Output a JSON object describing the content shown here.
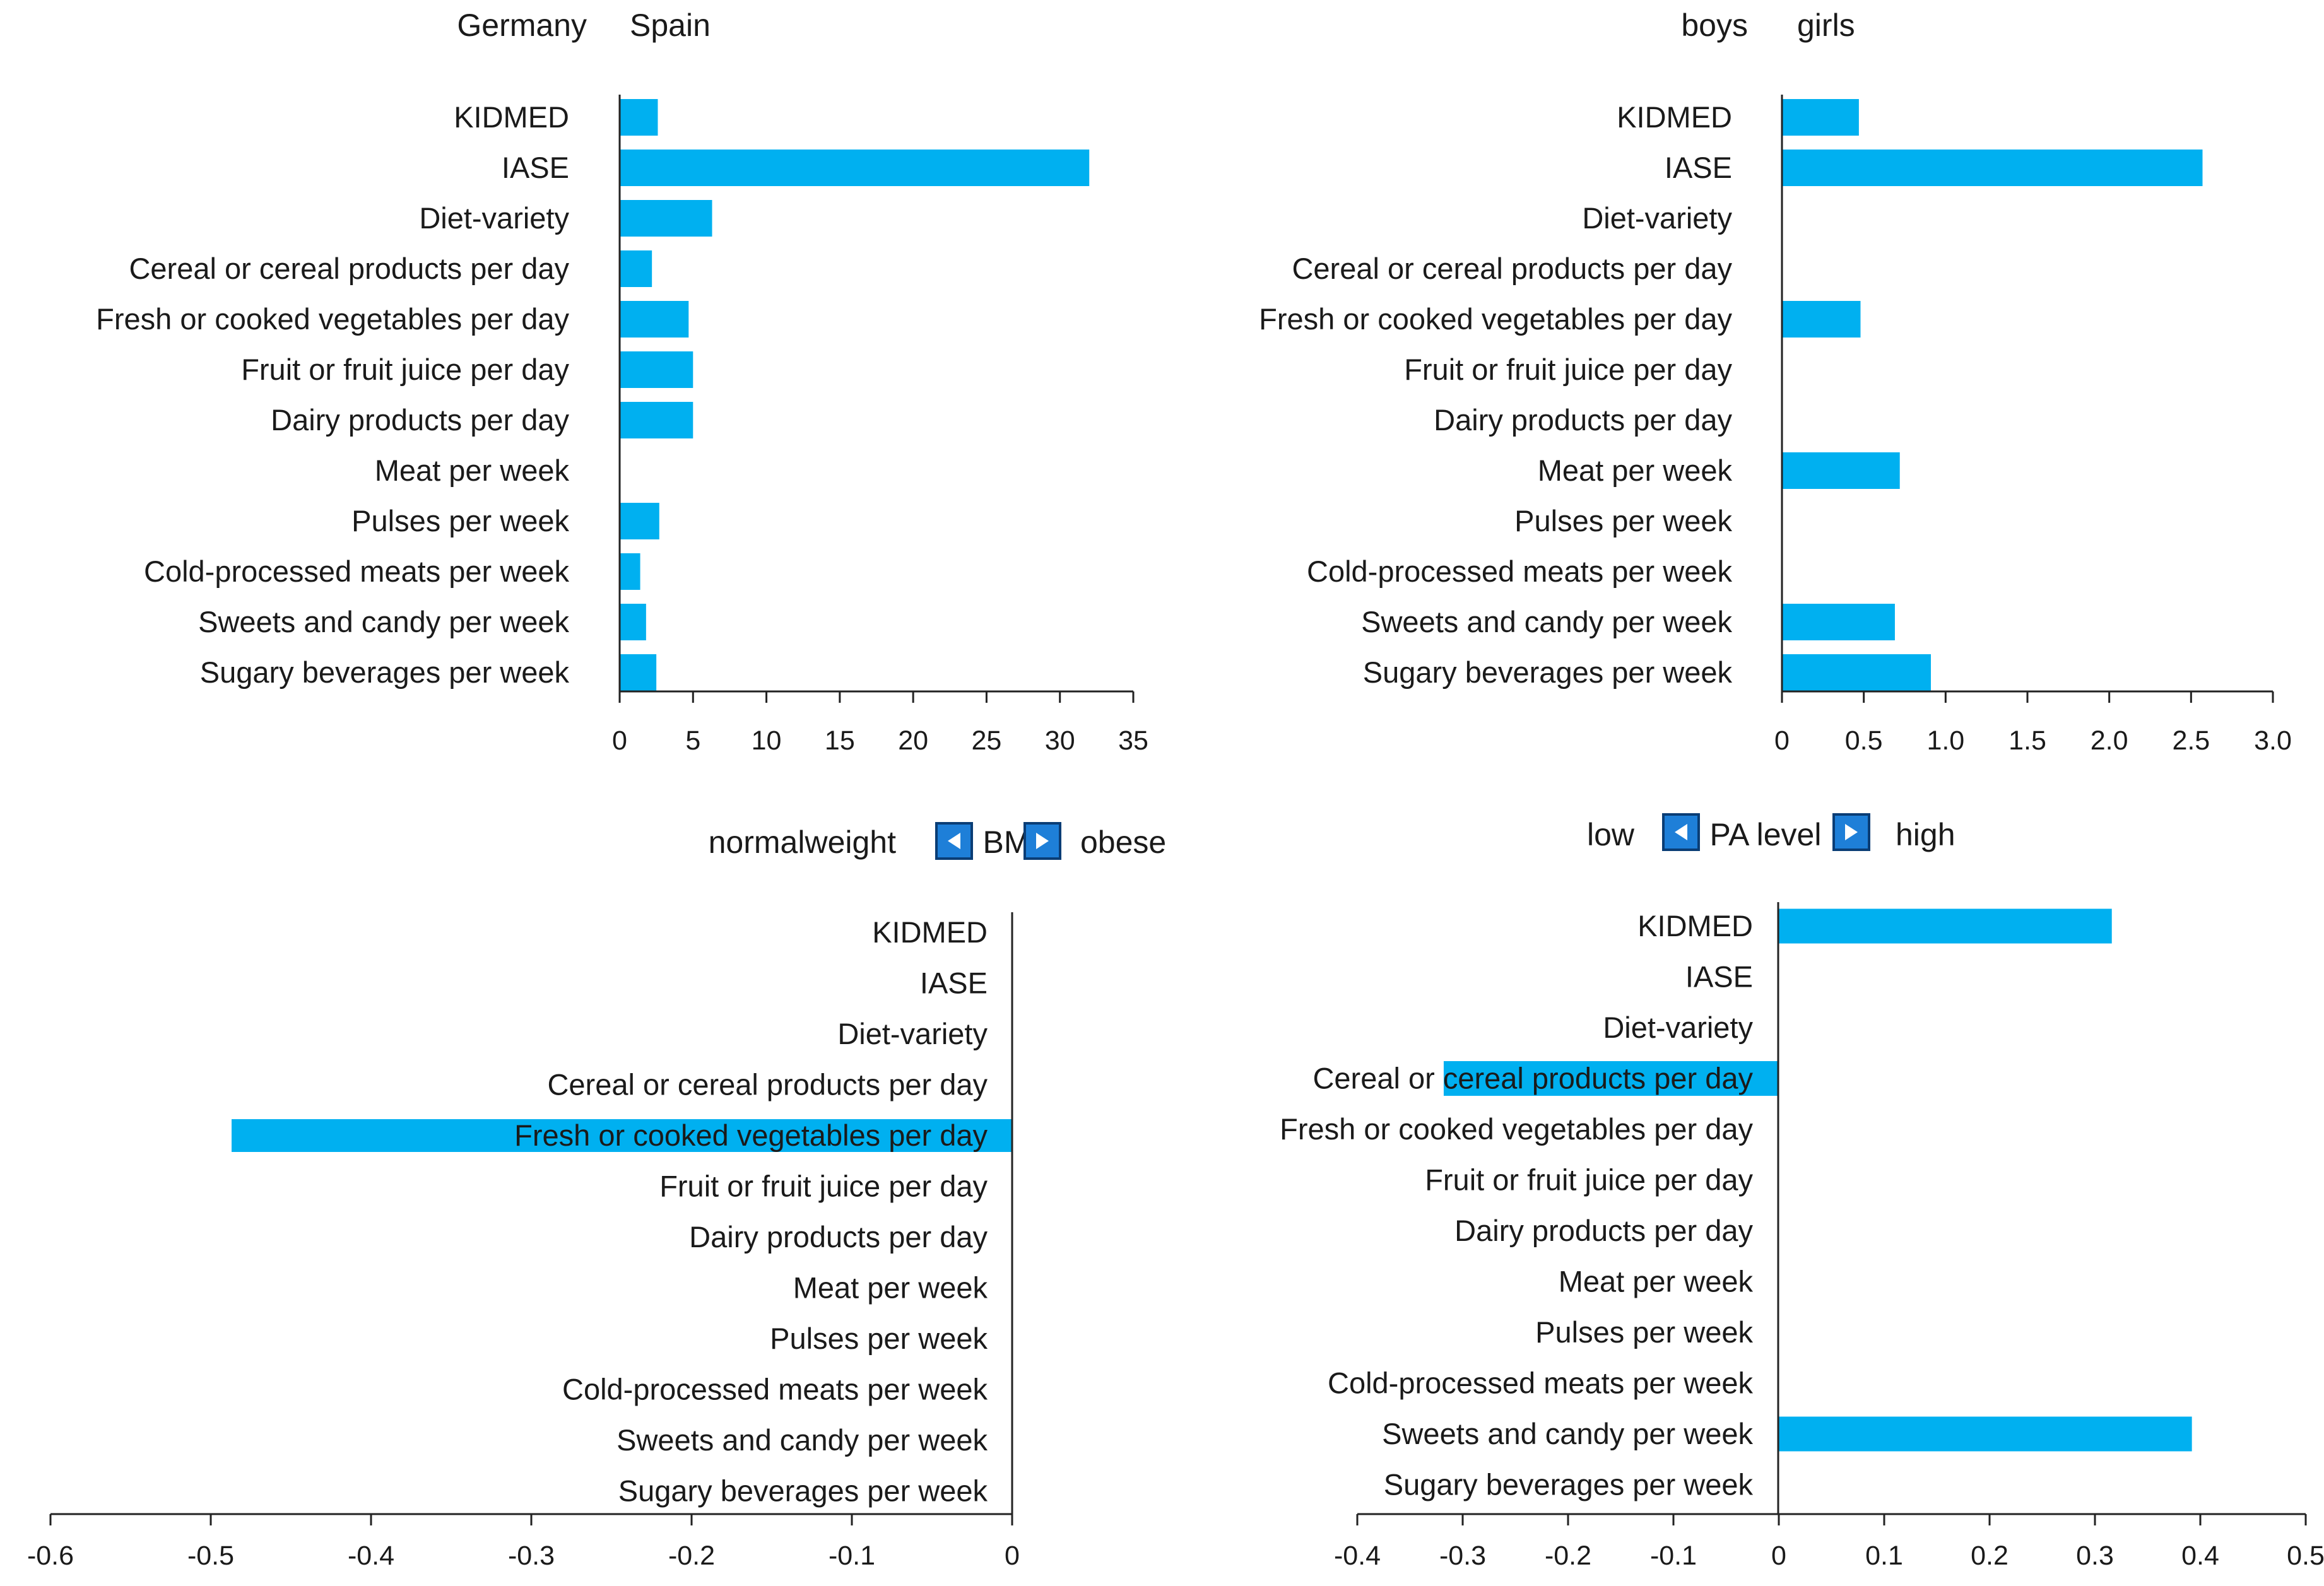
{
  "colors": {
    "bar": "#00b0f0",
    "axis": "#222222",
    "arrow": "#1e7fd8"
  },
  "chart_data": [
    {
      "type": "bar",
      "orientation": "horizontal",
      "header": {
        "left": "Germany",
        "right": "Spain"
      },
      "categories": [
        "KIDMED",
        "IASE",
        "Diet-variety",
        "Cereal or cereal products per day",
        "Fresh or cooked vegetables per day",
        "Fruit or fruit juice per day",
        "Dairy products per day",
        "Meat per week",
        "Pulses per week",
        "Cold-processed meats per week",
        "Sweets and candy per week",
        "Sugary beverages per week"
      ],
      "values": [
        2.6,
        32.0,
        6.3,
        2.2,
        4.7,
        5.0,
        5.0,
        0,
        2.7,
        1.4,
        1.8,
        2.5
      ],
      "xlim": [
        0,
        35
      ],
      "xticks": [
        "0",
        "5",
        "10",
        "15",
        "20",
        "25",
        "30",
        "35"
      ],
      "xtick_values": [
        0,
        5,
        10,
        15,
        20,
        25,
        30,
        35
      ]
    },
    {
      "type": "bar",
      "orientation": "horizontal",
      "header": {
        "left": "boys",
        "right": "girls"
      },
      "categories": [
        "KIDMED",
        "IASE",
        "Diet-variety",
        "Cereal or cereal products per day",
        "Fresh or cooked vegetables per day",
        "Fruit or fruit juice per day",
        "Dairy products per day",
        "Meat per week",
        "Pulses per week",
        "Cold-processed meats per week",
        "Sweets and candy per week",
        "Sugary beverages per week"
      ],
      "values": [
        0.47,
        2.57,
        0,
        0,
        0.48,
        0,
        0,
        0.72,
        0,
        0,
        0.69,
        0.91
      ],
      "xlim": [
        0,
        3.0
      ],
      "xticks": [
        "0",
        "0.5",
        "1.0",
        "1.5",
        "2.0",
        "2.5",
        "3.0"
      ],
      "xtick_values": [
        0,
        0.5,
        1.0,
        1.5,
        2.0,
        2.5,
        3.0
      ]
    },
    {
      "type": "bar",
      "orientation": "horizontal",
      "header": {
        "left": "normalweight",
        "middle": "BMI",
        "right": "obese"
      },
      "categories": [
        "KIDMED",
        "IASE",
        "Diet-variety",
        "Cereal or cereal products per day",
        "Fresh or cooked vegetables per day",
        "Fruit or fruit juice per day",
        "Dairy products per day",
        "Meat per week",
        "Pulses per week",
        "Cold-processed meats per week",
        "Sweets and candy per week",
        "Sugary beverages per week"
      ],
      "values": [
        0,
        0,
        0,
        0,
        -0.487,
        0,
        0,
        0,
        0,
        0,
        0,
        0
      ],
      "xlim": [
        -0.6,
        0
      ],
      "xticks": [
        "-0.6",
        "-0.5",
        "-0.4",
        "-0.3",
        "-0.2",
        "-0.1",
        "0"
      ],
      "xtick_values": [
        -0.6,
        -0.5,
        -0.4,
        -0.3,
        -0.2,
        -0.1,
        0
      ]
    },
    {
      "type": "bar",
      "orientation": "horizontal",
      "header": {
        "left": "low",
        "middle": "PA level",
        "right": "high"
      },
      "categories": [
        "KIDMED",
        "IASE",
        "Diet-variety",
        "Cereal or cereal products per day",
        "Fresh or cooked vegetables per day",
        "Fruit or fruit juice per day",
        "Dairy products per day",
        "Meat per week",
        "Pulses per week",
        "Cold-processed meats per week",
        "Sweets and candy per week",
        "Sugary beverages per week"
      ],
      "values": [
        0.316,
        0,
        0,
        -0.318,
        0,
        0,
        0,
        0,
        0,
        0,
        0.392,
        0
      ],
      "xlim": [
        -0.4,
        0.5
      ],
      "xticks": [
        "-0.4",
        "-0.3",
        "-0.2",
        "-0.1",
        "0",
        "0.1",
        "0.2",
        "0.3",
        "0.4",
        "0.5"
      ],
      "xtick_values": [
        -0.4,
        -0.3,
        -0.2,
        -0.1,
        0,
        0.1,
        0.2,
        0.3,
        0.4,
        0.5
      ]
    }
  ]
}
